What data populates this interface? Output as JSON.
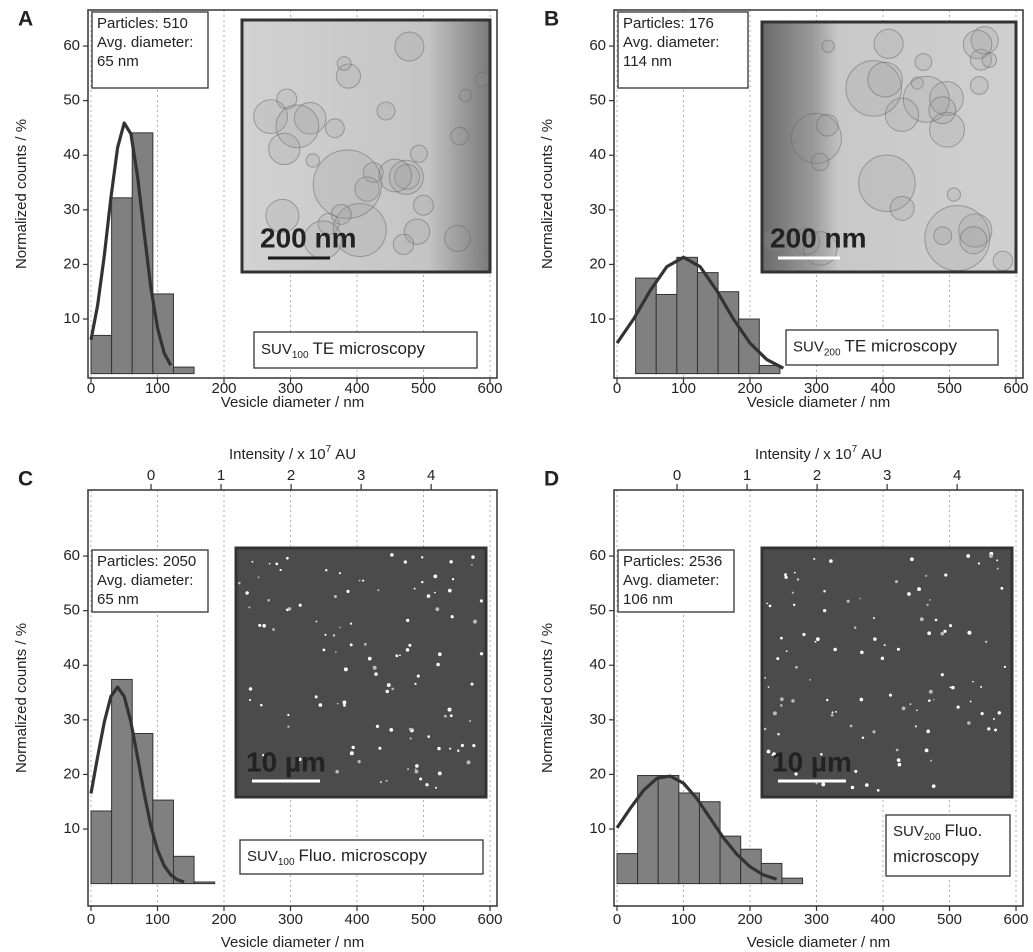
{
  "chart_data": [
    {
      "type": "histogram",
      "panel": "A",
      "bins": [
        0,
        31,
        62,
        93,
        124,
        155
      ],
      "values": [
        7,
        32.2,
        44.1,
        14.6,
        1.2
      ],
      "color": "#808080",
      "fit": {
        "x": [
          0,
          10,
          20,
          30,
          40,
          50,
          60,
          70,
          80,
          90,
          100,
          110,
          120
        ],
        "values": [
          6.2,
          12.5,
          21.6,
          32.2,
          41.4,
          45.9,
          43.9,
          36.2,
          25.8,
          15.8,
          8.4,
          3.8,
          1.5
        ],
        "color": "#333333"
      },
      "xlim": [
        -4.5,
        610.5
      ],
      "ylim": [
        -0.8,
        66.6
      ],
      "xticks": [
        0,
        100,
        200,
        300,
        400,
        500,
        600
      ],
      "yticks": [
        10,
        20,
        30,
        40,
        50,
        60
      ],
      "grid": "x",
      "xlabel": "Vesicle diameter / nm",
      "ylabel": "Normalized counts / %",
      "stats": [
        "Particles: 510",
        "Avg. diameter:",
        "65 nm"
      ],
      "inset": {
        "kind": "tem",
        "scale_bar_label": "200 nm"
      },
      "annotation": {
        "prefix": "SUV",
        "subscript": "100",
        "lines": [
          "TE microscopy"
        ]
      }
    },
    {
      "type": "histogram",
      "panel": "B",
      "bins": [
        28,
        59,
        90,
        121,
        152,
        183,
        214,
        245
      ],
      "values": [
        17.5,
        14.5,
        21.3,
        18.5,
        15,
        10,
        1.5
      ],
      "color": "#808080",
      "fit": {
        "x": [
          0,
          25,
          50,
          75,
          100,
          125,
          150,
          175,
          200,
          225,
          250
        ],
        "values": [
          5.6,
          10,
          15.2,
          19.6,
          21.3,
          19.6,
          15.2,
          10,
          5.6,
          2.6,
          1
        ],
        "color": "#333333"
      },
      "xlim": [
        -4.5,
        610.5
      ],
      "ylim": [
        -0.8,
        66.6
      ],
      "xticks": [
        0,
        100,
        200,
        300,
        400,
        500,
        600
      ],
      "yticks": [
        10,
        20,
        30,
        40,
        50,
        60
      ],
      "grid": "x",
      "xlabel": "Vesicle diameter / nm",
      "ylabel": "Normalized counts / %",
      "stats": [
        "Particles: 176",
        "Avg. diameter:",
        "114 nm"
      ],
      "inset": {
        "kind": "tem",
        "scale_bar_label": "200 nm"
      },
      "annotation": {
        "prefix": "SUV",
        "subscript": "200",
        "lines": [
          "TE microscopy"
        ]
      }
    },
    {
      "type": "histogram",
      "panel": "C",
      "bins": [
        0,
        31,
        62,
        93,
        124,
        155,
        186
      ],
      "values": [
        13.3,
        37.4,
        27.5,
        15.3,
        5,
        0.3
      ],
      "color": "#808080",
      "fit": {
        "x": [
          0,
          10,
          20,
          30,
          40,
          50,
          60,
          70,
          80,
          90,
          100,
          110,
          120,
          130,
          140
        ],
        "values": [
          16.5,
          23.2,
          29.6,
          34.3,
          36,
          34.3,
          29.6,
          23.2,
          16.5,
          10.6,
          6.2,
          3.3,
          1.6,
          0.7,
          0.3
        ],
        "color": "#333333"
      },
      "xlim": [
        -4.5,
        610.5
      ],
      "ylim": [
        -4.1,
        72.1
      ],
      "xticks": [
        0,
        100,
        200,
        300,
        400,
        500,
        600
      ],
      "yticks": [
        10,
        20,
        30,
        40,
        50,
        60
      ],
      "grid": "x",
      "x2lim": [
        -0.9,
        4.94
      ],
      "x2ticks": [
        0,
        1,
        2,
        3,
        4
      ],
      "x2label": {
        "before": "Intensity / x 10",
        "sup": "7",
        "after": "AU"
      },
      "xlabel": "Vesicle diameter / nm",
      "ylabel": "Normalized counts / %",
      "stats": [
        "Particles: 2050",
        "Avg. diameter:",
        "65 nm"
      ],
      "inset": {
        "kind": "fluorescence",
        "scale_bar_label": "10 µm"
      },
      "annotation": {
        "prefix": "SUV",
        "subscript": "100",
        "lines": [
          "Fluo. microscopy"
        ]
      }
    },
    {
      "type": "histogram",
      "panel": "D",
      "bins": [
        0,
        31,
        62,
        93,
        124,
        155,
        186,
        217,
        248,
        279
      ],
      "values": [
        5.5,
        19.8,
        19.8,
        16.6,
        15,
        8.7,
        6.3,
        3.7,
        1
      ],
      "color": "#808080",
      "fit": {
        "x": [
          0,
          20,
          40,
          60,
          80,
          100,
          120,
          140,
          160,
          180,
          200,
          220,
          240
        ],
        "values": [
          10.2,
          13.8,
          17.1,
          19.3,
          19.7,
          18.4,
          15.6,
          12,
          8.4,
          5.4,
          3.1,
          1.6,
          0.8
        ],
        "color": "#333333"
      },
      "xlim": [
        -4.5,
        610.5
      ],
      "ylim": [
        -4.1,
        72.1
      ],
      "xticks": [
        0,
        100,
        200,
        300,
        400,
        500,
        600
      ],
      "yticks": [
        10,
        20,
        30,
        40,
        50,
        60
      ],
      "grid": "x",
      "x2lim": [
        -0.9,
        4.94
      ],
      "x2ticks": [
        0,
        1,
        2,
        3,
        4
      ],
      "x2label": {
        "before": "Intensity / x 10",
        "sup": "7",
        "after": "AU"
      },
      "xlabel": "Vesicle diameter / nm",
      "ylabel": "Normalized counts / %",
      "stats": [
        "Particles: 2536",
        "Avg. diameter:",
        "106 nm"
      ],
      "inset": {
        "kind": "fluorescence",
        "scale_bar_label": "10 µm"
      },
      "annotation": {
        "prefix": "SUV",
        "subscript": "200",
        "lines": [
          "Fluo.",
          "microscopy"
        ]
      }
    }
  ]
}
